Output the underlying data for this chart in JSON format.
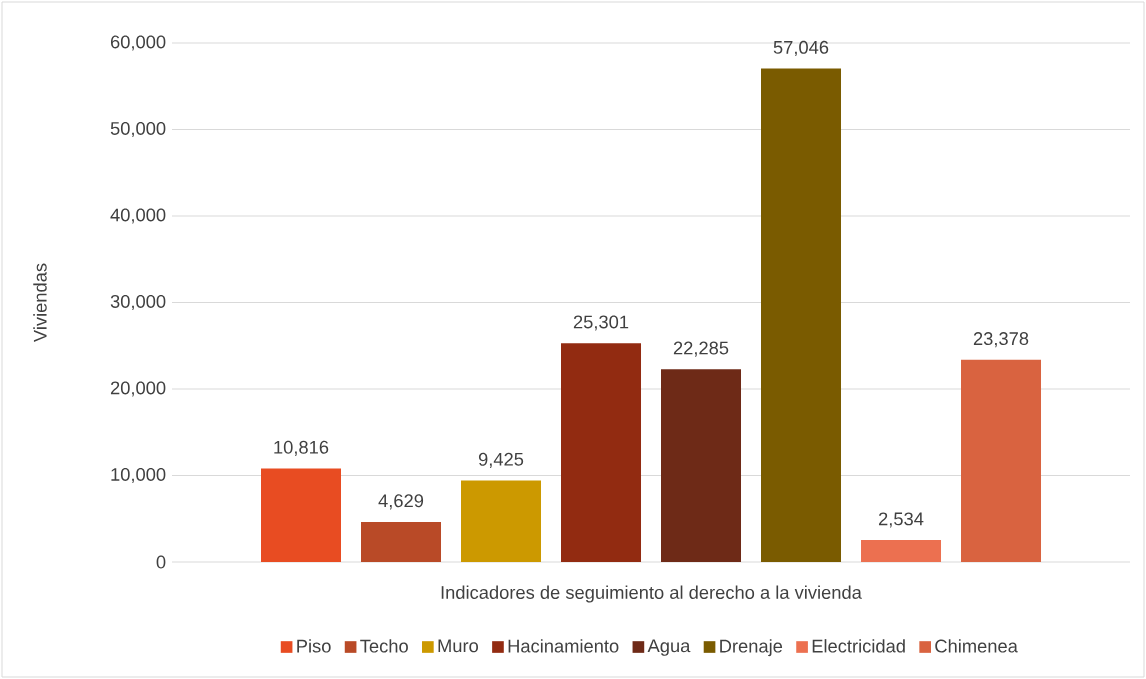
{
  "chart_data": {
    "type": "bar",
    "xlabel": "Indicadores de seguimiento al derecho a la vivienda",
    "ylabel": "Viviendas",
    "categories": [
      null
    ],
    "series": [
      {
        "name": "Piso",
        "color": "#e84c22",
        "values": [
          10816
        ],
        "value_labels": [
          "10,816"
        ]
      },
      {
        "name": "Techo",
        "color": "#b94a27",
        "values": [
          4629
        ],
        "value_labels": [
          "4,629"
        ]
      },
      {
        "name": "Muro",
        "color": "#cc9900",
        "values": [
          9425
        ],
        "value_labels": [
          "9,425"
        ]
      },
      {
        "name": "Hacinamiento",
        "color": "#922b11",
        "values": [
          25301
        ],
        "value_labels": [
          "25,301"
        ]
      },
      {
        "name": "Agua",
        "color": "#6e2a17",
        "values": [
          22285
        ],
        "value_labels": [
          "22,285"
        ]
      },
      {
        "name": "Drenaje",
        "color": "#7a5b00",
        "values": [
          57046
        ],
        "value_labels": [
          "57,046"
        ]
      },
      {
        "name": "Electricidad",
        "color": "#ec7050",
        "values": [
          2534
        ],
        "value_labels": [
          "2,534"
        ]
      },
      {
        "name": "Chimenea",
        "color": "#d96340",
        "values": [
          23378
        ],
        "value_labels": [
          "23,378"
        ]
      }
    ],
    "ylim": [
      0,
      60000
    ],
    "yticks": [
      0,
      {
        "value": 10000,
        "label": "10,000"
      },
      {
        "value": 20000,
        "label": "20,000"
      },
      {
        "value": 30000,
        "label": "30,000"
      },
      {
        "value": 40000,
        "label": "40,000"
      },
      {
        "value": 50000,
        "label": "50,000"
      },
      {
        "value": 60000,
        "label": "60,000"
      }
    ],
    "grid": "y",
    "legend": "bottom"
  }
}
